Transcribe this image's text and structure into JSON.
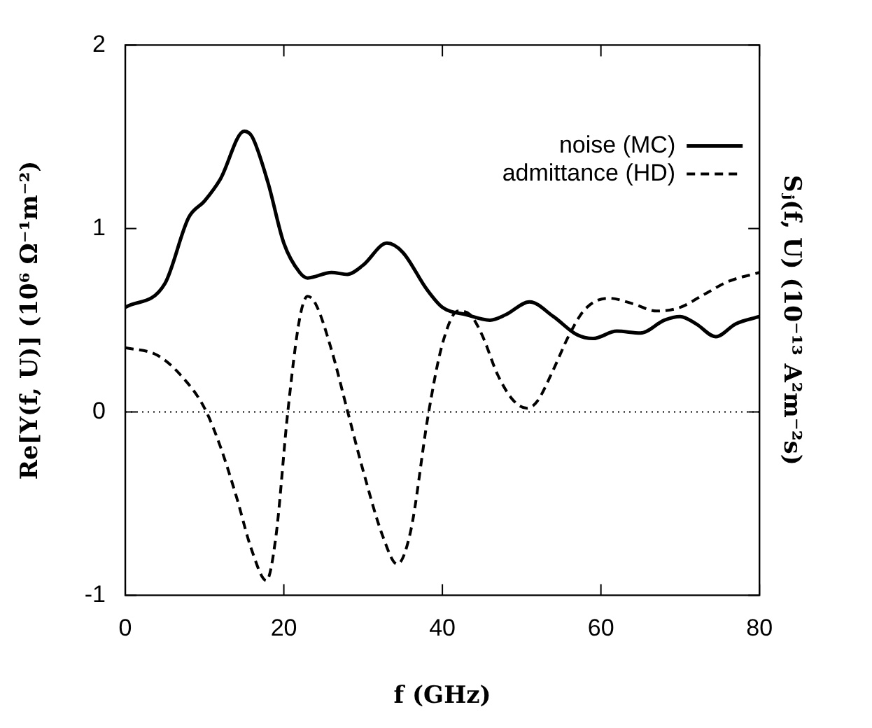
{
  "chart_data": {
    "type": "line",
    "xlabel": "f (GHz)",
    "ylabel": "Re[Y(f, U)] (10⁶ Ω⁻¹m⁻²)",
    "y2label": "Sⱼ(f, U) (10⁻¹³ A²m⁻²s)",
    "xlim": [
      0,
      80
    ],
    "xticks": [
      0,
      20,
      40,
      60,
      80
    ],
    "ylim": [
      -1,
      2
    ],
    "yticks": [
      -1,
      0,
      1,
      2
    ],
    "grid": false,
    "legend": "top right",
    "marker": "none",
    "ref_lines": [
      {
        "axis": "y",
        "value": 0,
        "color": "#000000",
        "line_style": "dotted"
      }
    ],
    "series": [
      {
        "name": "noise (MC)",
        "color": "#000000",
        "line_style": "solid",
        "x": [
          0,
          5,
          8,
          10,
          12,
          15,
          16,
          18,
          20,
          22,
          23,
          26,
          28,
          30,
          33,
          35,
          38,
          40,
          43,
          46,
          48,
          51,
          54,
          57,
          59,
          62,
          65,
          68,
          70,
          72,
          74.5,
          77,
          80
        ],
        "values": [
          0.57,
          0.7,
          1.06,
          1.15,
          1.27,
          1.53,
          1.5,
          1.25,
          0.92,
          0.76,
          0.73,
          0.76,
          0.75,
          0.8,
          0.92,
          0.87,
          0.67,
          0.57,
          0.53,
          0.5,
          0.53,
          0.6,
          0.52,
          0.42,
          0.4,
          0.44,
          0.43,
          0.5,
          0.52,
          0.48,
          0.41,
          0.48,
          0.52
        ]
      },
      {
        "name": "admittance (HD)",
        "color": "#000000",
        "line_style": "dashed",
        "x": [
          0,
          4,
          7,
          10,
          12,
          14,
          16,
          17.8,
          19,
          20.5,
          22,
          23,
          24,
          26,
          28,
          30,
          32.5,
          34.3,
          36,
          38.2,
          40,
          42,
          43.5,
          45,
          47,
          49,
          50.7,
          52,
          54,
          56,
          58,
          61,
          64,
          67,
          70,
          73,
          76,
          80
        ],
        "values": [
          0.35,
          0.31,
          0.2,
          0.02,
          -0.19,
          -0.46,
          -0.76,
          -0.92,
          -0.68,
          0,
          0.51,
          0.63,
          0.59,
          0.34,
          0.01,
          -0.32,
          -0.68,
          -0.83,
          -0.65,
          -0.02,
          0.37,
          0.55,
          0.53,
          0.42,
          0.2,
          0.06,
          0.02,
          0.06,
          0.23,
          0.42,
          0.56,
          0.62,
          0.59,
          0.55,
          0.57,
          0.64,
          0.71,
          0.76
        ]
      }
    ]
  }
}
